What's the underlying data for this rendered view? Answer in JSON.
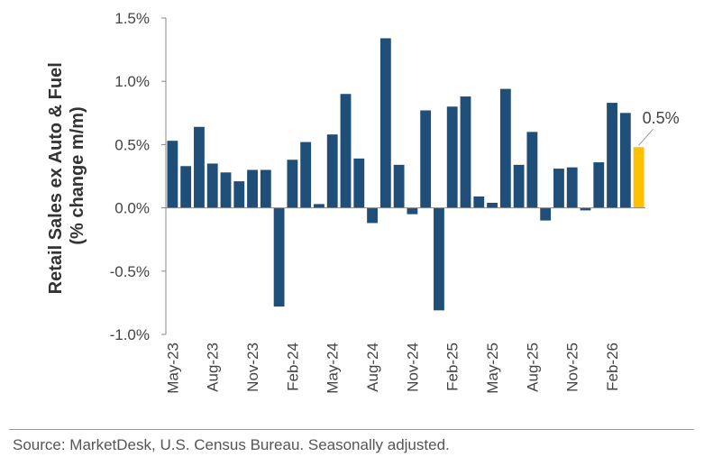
{
  "chart_data": {
    "type": "bar",
    "ylabel_line1": "Retail Sales ex Auto & Fuel",
    "ylabel_line2": "(% change m/m)",
    "ylim": [
      -1.0,
      1.5
    ],
    "yticks": [
      "1.5%",
      "1.0%",
      "0.5%",
      "0.0%",
      "-0.5%",
      "-1.0%"
    ],
    "categories": [
      "May-23",
      "Jun-23",
      "Jul-23",
      "Aug-23",
      "Sep-23",
      "Oct-23",
      "Nov-23",
      "Dec-23",
      "Jan-24",
      "Feb-24",
      "Mar-24",
      "Apr-24",
      "May-24",
      "Jun-24",
      "Jul-24",
      "Aug-24",
      "Sep-24",
      "Oct-24",
      "Nov-24",
      "Dec-24",
      "Jan-25",
      "Feb-25",
      "Mar-25",
      "Apr-25",
      "May-25",
      "Jun-25",
      "Jul-25",
      "Aug-25",
      "Sep-25",
      "Oct-25",
      "Nov-25",
      "Dec-25",
      "Jan-26",
      "Feb-26",
      "Mar-26",
      "Apr-26"
    ],
    "x_tick_labels": [
      "May-23",
      "Aug-23",
      "Nov-23",
      "Feb-24",
      "May-24",
      "Aug-24",
      "Nov-24",
      "Feb-25",
      "May-25",
      "Aug-25",
      "Nov-25",
      "Feb-26"
    ],
    "values": [
      0.53,
      0.33,
      0.64,
      0.35,
      0.28,
      0.21,
      0.3,
      0.3,
      -0.78,
      0.38,
      0.52,
      0.03,
      0.58,
      0.9,
      0.39,
      -0.12,
      1.34,
      0.34,
      -0.05,
      0.77,
      -0.81,
      0.8,
      0.88,
      0.09,
      0.04,
      0.94,
      0.34,
      0.6,
      -0.1,
      0.31,
      0.32,
      -0.02,
      0.36,
      0.83,
      0.75,
      0.48
    ],
    "bar_color": "#1f4e79",
    "highlight_color": "#ffc000",
    "highlight_index": 35,
    "callout_label": "0.5%"
  },
  "source": "Source: MarketDesk, U.S. Census Bureau. Seasonally adjusted."
}
